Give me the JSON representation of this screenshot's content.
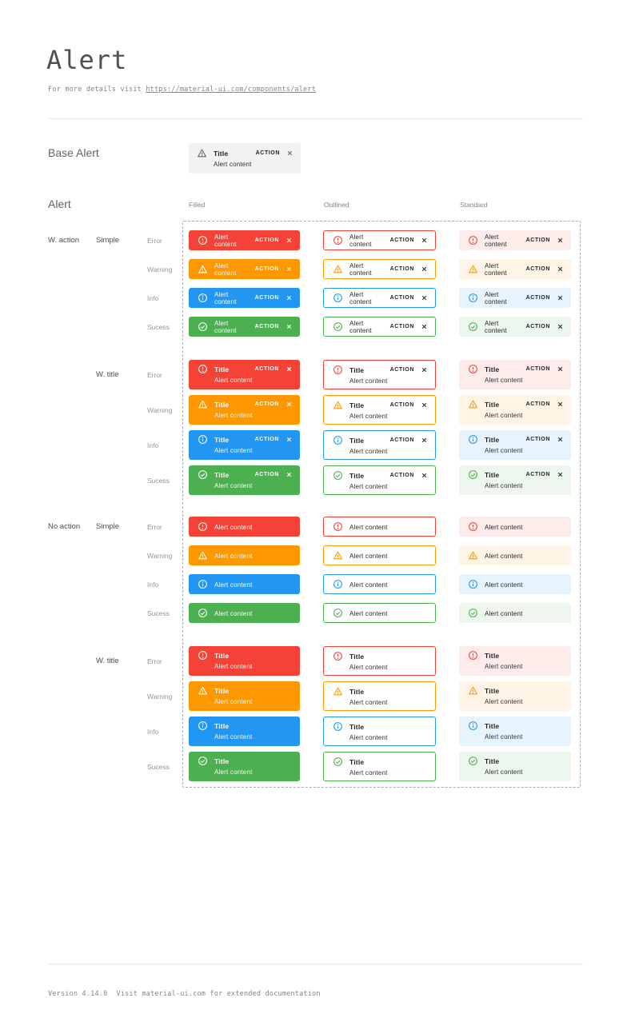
{
  "page": {
    "title": "Alert",
    "subtitle": {
      "prefix": "For more details visit ",
      "link": "https://material-ui.com/components/alert"
    },
    "footer": {
      "version": "Version 4.14.0",
      "note": "Visit material-ui.com for extended documentation"
    }
  },
  "base_alert_section": {
    "label": "Base Alert",
    "alert": {
      "icon": "warning-icon",
      "title": "Title",
      "content": "Alert content",
      "action_label": "ACTION",
      "bg": "#f2f2f1"
    }
  },
  "alert_matrix": {
    "label": "Alert",
    "column_headers": [
      "Filled",
      "Outlined",
      "Standard"
    ],
    "alert_text": {
      "title": "Title",
      "content": "Alert content",
      "action_label": "ACTION"
    },
    "severities": [
      {
        "id": "error",
        "label": "Error",
        "icon": "error-icon",
        "color": "#f44336",
        "standard_bg": "#fdecea"
      },
      {
        "id": "warning",
        "label": "Warning",
        "icon": "warning-icon",
        "color": "#ff9800",
        "standard_bg": "#fff4e5"
      },
      {
        "id": "info",
        "label": "Info",
        "icon": "info-icon",
        "color": "#2196f3",
        "standard_bg": "#e8f4fd"
      },
      {
        "id": "success",
        "label": "Sucess",
        "icon": "success-icon",
        "color": "#4caf50",
        "standard_bg": "#edf7ed"
      }
    ],
    "row_groups": [
      {
        "action_label": "W. action",
        "style_label": "Simple",
        "has_action": true,
        "has_title": false
      },
      {
        "action_label": "",
        "style_label": "W. title",
        "has_action": true,
        "has_title": true
      },
      {
        "action_label": "No action",
        "style_label": "Simple",
        "has_action": false,
        "has_title": false
      },
      {
        "action_label": "",
        "style_label": "W. title",
        "has_action": false,
        "has_title": true
      }
    ]
  }
}
